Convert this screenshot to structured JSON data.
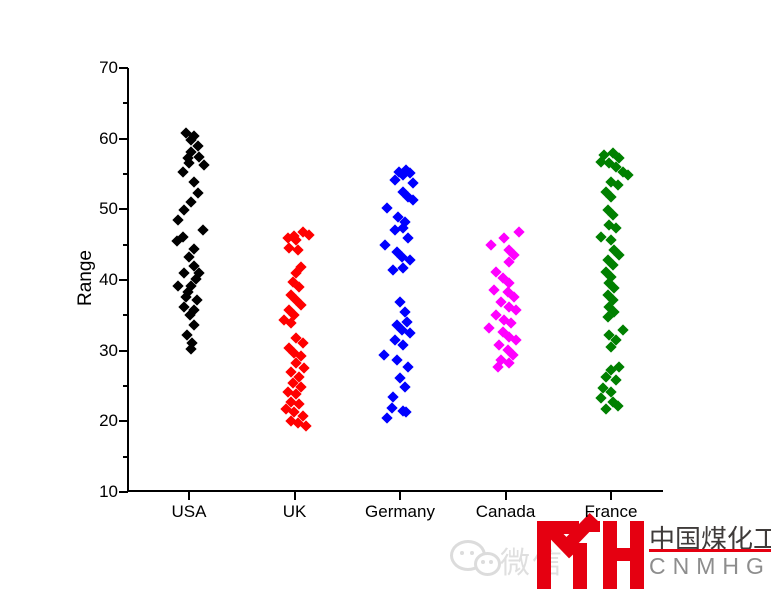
{
  "chart_data": {
    "type": "scatter",
    "title": "",
    "xlabel": "",
    "ylabel": "Range",
    "ylim": [
      10,
      70
    ],
    "ytick_major": [
      10,
      20,
      30,
      40,
      50,
      60,
      70
    ],
    "ytick_minor": [
      15,
      25,
      35,
      45,
      55,
      65
    ],
    "grid": false,
    "legend": "none",
    "marker": "diamond",
    "categories": [
      "USA",
      "UK",
      "Germany",
      "Canada",
      "France"
    ],
    "series": [
      {
        "name": "USA",
        "color": "#000000",
        "points": [
          [
            60.8,
            -5
          ],
          [
            60.4,
            3
          ],
          [
            59.8,
            0
          ],
          [
            59.0,
            7
          ],
          [
            58.1,
            0
          ],
          [
            57.4,
            8
          ],
          [
            57.3,
            -3
          ],
          [
            56.6,
            -2
          ],
          [
            56.3,
            13
          ],
          [
            55.3,
            -8
          ],
          [
            53.9,
            3
          ],
          [
            52.3,
            7
          ],
          [
            51.1,
            0
          ],
          [
            49.9,
            -7
          ],
          [
            48.5,
            -13
          ],
          [
            47.1,
            12
          ],
          [
            46.1,
            -8
          ],
          [
            45.5,
            -14
          ],
          [
            44.4,
            3
          ],
          [
            43.2,
            -2
          ],
          [
            42.0,
            3
          ],
          [
            41.0,
            -7
          ],
          [
            41.0,
            8
          ],
          [
            40.1,
            5
          ],
          [
            39.2,
            -13
          ],
          [
            39.1,
            0
          ],
          [
            38.3,
            -3
          ],
          [
            37.6,
            -5
          ],
          [
            37.2,
            6
          ],
          [
            36.2,
            -7
          ],
          [
            35.8,
            3
          ],
          [
            35.1,
            -1
          ],
          [
            33.6,
            3
          ],
          [
            32.2,
            -4
          ],
          [
            31.1,
            1
          ],
          [
            30.3,
            0
          ]
        ]
      },
      {
        "name": "UK",
        "color": "#ff0000",
        "points": [
          [
            46.8,
            6
          ],
          [
            46.4,
            12
          ],
          [
            46.2,
            -3
          ],
          [
            45.9,
            -9
          ],
          [
            45.7,
            -1
          ],
          [
            44.5,
            -8
          ],
          [
            44.3,
            1
          ],
          [
            41.9,
            4
          ],
          [
            41.0,
            -1
          ],
          [
            39.7,
            -4
          ],
          [
            39.0,
            2
          ],
          [
            37.9,
            -6
          ],
          [
            37.2,
            -1
          ],
          [
            36.5,
            4
          ],
          [
            35.8,
            -8
          ],
          [
            35.0,
            -3
          ],
          [
            34.3,
            -13
          ],
          [
            33.9,
            -6
          ],
          [
            31.8,
            -1
          ],
          [
            31.1,
            6
          ],
          [
            30.4,
            -8
          ],
          [
            29.7,
            -3
          ],
          [
            29.2,
            4
          ],
          [
            28.3,
            -1
          ],
          [
            27.6,
            7
          ],
          [
            27.0,
            -6
          ],
          [
            26.3,
            2
          ],
          [
            25.4,
            -4
          ],
          [
            24.9,
            4
          ],
          [
            24.2,
            -9
          ],
          [
            23.8,
            -1
          ],
          [
            22.8,
            -6
          ],
          [
            22.4,
            2
          ],
          [
            21.7,
            -11
          ],
          [
            21.3,
            -3
          ],
          [
            20.7,
            6
          ],
          [
            20.1,
            -6
          ],
          [
            19.7,
            1
          ],
          [
            19.4,
            9
          ]
        ]
      },
      {
        "name": "Germany",
        "color": "#0000ff",
        "points": [
          [
            55.5,
            4
          ],
          [
            55.3,
            -3
          ],
          [
            55.1,
            8
          ],
          [
            54.9,
            1
          ],
          [
            54.2,
            -7
          ],
          [
            53.7,
            11
          ],
          [
            52.5,
            1
          ],
          [
            51.7,
            6
          ],
          [
            51.3,
            11
          ],
          [
            50.2,
            -15
          ],
          [
            48.9,
            -4
          ],
          [
            48.2,
            3
          ],
          [
            47.4,
            1
          ],
          [
            47.1,
            -7
          ],
          [
            45.9,
            6
          ],
          [
            45.0,
            -17
          ],
          [
            44.0,
            -5
          ],
          [
            43.3,
            0
          ],
          [
            42.9,
            8
          ],
          [
            41.7,
            1
          ],
          [
            41.4,
            -9
          ],
          [
            36.9,
            -2
          ],
          [
            35.5,
            3
          ],
          [
            34.1,
            5
          ],
          [
            33.6,
            -5
          ],
          [
            32.9,
            0
          ],
          [
            32.5,
            8
          ],
          [
            31.5,
            -7
          ],
          [
            30.8,
            1
          ],
          [
            29.4,
            -18
          ],
          [
            28.7,
            -5
          ],
          [
            27.7,
            6
          ],
          [
            26.1,
            -2
          ],
          [
            24.9,
            3
          ],
          [
            23.5,
            -9
          ],
          [
            21.9,
            -10
          ],
          [
            21.4,
            1
          ],
          [
            21.3,
            4
          ],
          [
            20.5,
            -15
          ]
        ]
      },
      {
        "name": "Canada",
        "color": "#ff00ff",
        "points": [
          [
            46.8,
            11
          ],
          [
            45.9,
            -4
          ],
          [
            45.0,
            -17
          ],
          [
            44.3,
            1
          ],
          [
            43.5,
            6
          ],
          [
            42.6,
            1
          ],
          [
            41.1,
            -12
          ],
          [
            40.3,
            -5
          ],
          [
            39.6,
            1
          ],
          [
            38.6,
            -14
          ],
          [
            38.3,
            0
          ],
          [
            37.6,
            6
          ],
          [
            36.9,
            -7
          ],
          [
            36.2,
            1
          ],
          [
            35.8,
            8
          ],
          [
            35.0,
            -12
          ],
          [
            34.3,
            -4
          ],
          [
            33.9,
            3
          ],
          [
            33.2,
            -19
          ],
          [
            32.7,
            -5
          ],
          [
            32.0,
            1
          ],
          [
            31.5,
            8
          ],
          [
            30.8,
            -9
          ],
          [
            30.1,
            0
          ],
          [
            29.4,
            5
          ],
          [
            28.7,
            -7
          ],
          [
            28.3,
            1
          ],
          [
            27.7,
            -10
          ]
        ]
      },
      {
        "name": "France",
        "color": "#008000",
        "points": [
          [
            58.0,
            0
          ],
          [
            57.7,
            -9
          ],
          [
            57.3,
            6
          ],
          [
            56.7,
            -12
          ],
          [
            56.6,
            -4
          ],
          [
            56.0,
            3
          ],
          [
            55.3,
            10
          ],
          [
            54.9,
            15
          ],
          [
            53.9,
            -2
          ],
          [
            53.4,
            5
          ],
          [
            52.5,
            -7
          ],
          [
            51.7,
            -2
          ],
          [
            49.9,
            -5
          ],
          [
            49.2,
            0
          ],
          [
            47.8,
            -4
          ],
          [
            47.4,
            3
          ],
          [
            46.1,
            -12
          ],
          [
            45.7,
            -2
          ],
          [
            44.3,
            1
          ],
          [
            43.5,
            6
          ],
          [
            42.8,
            -5
          ],
          [
            42.1,
            0
          ],
          [
            41.1,
            -7
          ],
          [
            40.4,
            -2
          ],
          [
            39.6,
            -4
          ],
          [
            38.9,
            1
          ],
          [
            37.9,
            -5
          ],
          [
            37.2,
            0
          ],
          [
            36.2,
            -4
          ],
          [
            35.5,
            1
          ],
          [
            34.8,
            -5
          ],
          [
            32.9,
            10
          ],
          [
            32.2,
            -4
          ],
          [
            31.5,
            3
          ],
          [
            30.5,
            -2
          ],
          [
            27.7,
            6
          ],
          [
            27.3,
            -2
          ],
          [
            26.3,
            -7
          ],
          [
            25.9,
            3
          ],
          [
            24.7,
            -10
          ],
          [
            24.2,
            -2
          ],
          [
            23.3,
            -12
          ],
          [
            22.8,
            0
          ],
          [
            22.1,
            5
          ],
          [
            21.7,
            -7
          ]
        ]
      }
    ]
  },
  "watermark": {
    "label": "微信"
  },
  "logo": {
    "mark_text": "IYH",
    "company_cn": "中国煤化工",
    "company_en": "CNMHG",
    "red": "#e50011",
    "gray": "#8d8d8d",
    "dark": "#3f3b3a"
  }
}
